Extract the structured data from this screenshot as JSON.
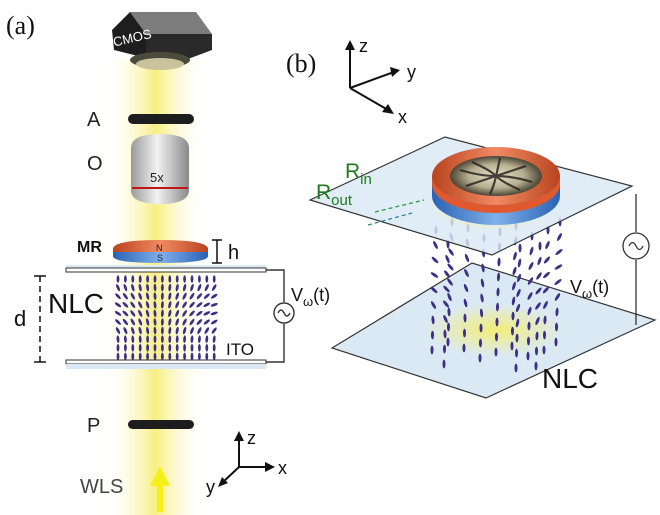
{
  "panel_a": {
    "label": "(a)",
    "camera": "CMOS",
    "analyzer": "A",
    "objective": "O",
    "magnification": "5x",
    "magnet": "MR",
    "north": "N",
    "south": "S",
    "height": "h",
    "gap": "d",
    "nlc": "NLC",
    "voltage": "V",
    "voltage_sub": "ω",
    "voltage_arg": "(t)",
    "ito": "ITO",
    "polarizer": "P",
    "source": "WLS",
    "axes": {
      "z": "z",
      "x": "x",
      "y": "y"
    }
  },
  "panel_b": {
    "label": "(b)",
    "r_in": "R",
    "r_in_sub": "in",
    "r_out": "R",
    "r_out_sub": "out",
    "voltage": "V",
    "voltage_sub": "ω",
    "voltage_arg": "(t)",
    "nlc": "NLC",
    "axes": {
      "z": "z",
      "x": "x",
      "y": "y"
    }
  },
  "colors": {
    "beam": "#f7ee7a",
    "director": "#3c2f88",
    "magnet_top": "#e0582e",
    "magnet_bottom": "#3a78c8",
    "plate": "#dbe9f4",
    "radius_label": "#1d7a1d"
  }
}
